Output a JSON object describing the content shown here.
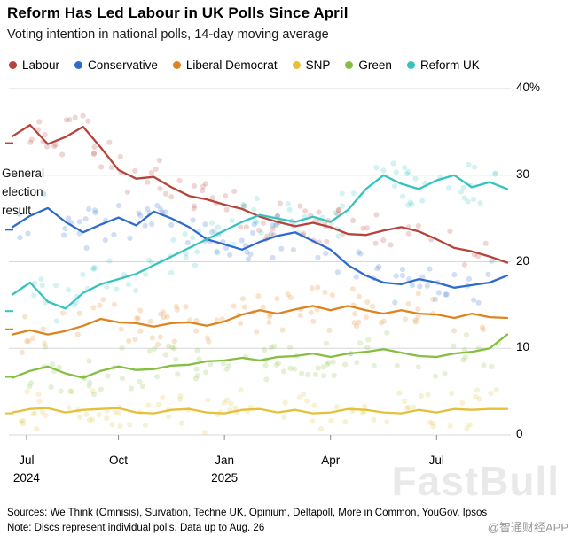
{
  "header": {
    "title": "Reform Has Led Labour in UK Polls Since April",
    "subtitle": "Voting intention in national polls, 14-day moving average"
  },
  "legend": [
    {
      "label": "Labour",
      "color": "#b5443a"
    },
    {
      "label": "Conservative",
      "color": "#2f6bce"
    },
    {
      "label": "Liberal Democrat",
      "color": "#dd8420"
    },
    {
      "label": "SNP",
      "color": "#e3c13d"
    },
    {
      "label": "Green",
      "color": "#84bf41"
    },
    {
      "label": "Reform UK",
      "color": "#36c3bd"
    }
  ],
  "annotation": {
    "text": "General\nelection\nresult"
  },
  "chart_data": {
    "type": "line",
    "note": "Lines are 14-day moving averages; translucent discs are individual polls",
    "x_unit": "months since Jul 2024",
    "x_range": [
      0,
      14
    ],
    "ylim": [
      0,
      40
    ],
    "grid": true,
    "t_step": 0.5,
    "y_ticks": [
      {
        "value": 40,
        "label": "40%"
      },
      {
        "value": 30,
        "label": "30"
      },
      {
        "value": 20,
        "label": "20"
      },
      {
        "value": 10,
        "label": "10"
      },
      {
        "value": 0,
        "label": "0"
      }
    ],
    "x_ticks": [
      {
        "t": 0.4,
        "label": "Jul",
        "year": "2024"
      },
      {
        "t": 3,
        "label": "Oct",
        "year": ""
      },
      {
        "t": 6,
        "label": "Jan",
        "year": "2025"
      },
      {
        "t": 9,
        "label": "Apr",
        "year": ""
      },
      {
        "t": 12,
        "label": "Jul",
        "year": ""
      }
    ],
    "series": [
      {
        "name": "Labour",
        "color": "#b5443a",
        "election_result": 33.7,
        "values": [
          34.5,
          35.8,
          33.6,
          34.4,
          35.6,
          33.2,
          30.6,
          29.6,
          29.8,
          28.6,
          27.6,
          27.2,
          26.6,
          26.1,
          25.2,
          24.6,
          24.1,
          24.5,
          24.0,
          23.2,
          23.1,
          23.6,
          24.0,
          23.5,
          22.6,
          21.6,
          21.2,
          20.6,
          19.9
        ]
      },
      {
        "name": "Conservative",
        "color": "#2f6bce",
        "election_result": 23.7,
        "values": [
          24.0,
          25.3,
          26.2,
          24.6,
          23.4,
          24.3,
          25.1,
          24.2,
          25.8,
          25.0,
          24.0,
          22.6,
          22.0,
          21.4,
          22.3,
          23.0,
          23.4,
          22.4,
          21.4,
          19.6,
          18.4,
          17.6,
          17.4,
          18.0,
          17.6,
          17.0,
          17.3,
          17.6,
          18.4
        ]
      },
      {
        "name": "Liberal Democrat",
        "color": "#dd8420",
        "election_result": 12.2,
        "values": [
          11.6,
          12.1,
          11.6,
          12.0,
          12.6,
          13.4,
          13.0,
          12.9,
          12.5,
          12.9,
          13.0,
          12.6,
          13.1,
          13.9,
          14.4,
          14.0,
          14.5,
          14.9,
          14.4,
          14.9,
          14.4,
          14.0,
          14.4,
          14.0,
          13.9,
          13.5,
          14.0,
          13.6,
          13.5
        ]
      },
      {
        "name": "SNP",
        "color": "#e3c13d",
        "election_result": 2.5,
        "values": [
          2.6,
          3.0,
          3.1,
          2.6,
          2.9,
          3.0,
          3.1,
          2.6,
          2.5,
          2.9,
          3.0,
          2.6,
          2.5,
          2.9,
          3.0,
          2.6,
          2.9,
          2.5,
          2.6,
          3.0,
          2.9,
          2.6,
          2.5,
          2.9,
          2.6,
          3.0,
          2.9,
          3.0,
          3.0
        ]
      },
      {
        "name": "Green",
        "color": "#84bf41",
        "election_result": 6.7,
        "values": [
          6.6,
          7.4,
          7.9,
          7.1,
          6.6,
          7.4,
          7.9,
          7.5,
          7.6,
          8.0,
          8.1,
          8.5,
          8.6,
          8.9,
          8.6,
          9.0,
          9.1,
          9.4,
          9.0,
          9.4,
          9.6,
          9.9,
          9.5,
          9.1,
          9.0,
          9.4,
          9.6,
          10.0,
          11.6
        ]
      },
      {
        "name": "Reform UK",
        "color": "#36c3bd",
        "election_result": 14.3,
        "values": [
          16.2,
          17.6,
          15.4,
          14.6,
          16.4,
          17.4,
          18.0,
          18.6,
          19.6,
          20.6,
          21.6,
          22.6,
          23.6,
          24.6,
          25.4,
          25.0,
          24.6,
          25.2,
          24.6,
          26.0,
          28.4,
          30.0,
          29.0,
          28.4,
          29.4,
          30.0,
          28.6,
          29.2,
          28.4
        ]
      }
    ]
  },
  "footer": {
    "sources": "Sources: We Think (Omnisis), Survation, Techne UK, Opinium, Deltapoll, More in Common, YouGov, Ipsos",
    "note": "Note: Discs represent individual polls. Data up to Aug. 26"
  },
  "watermarks": {
    "big": "FastBull",
    "small": "@智通财经APP"
  }
}
